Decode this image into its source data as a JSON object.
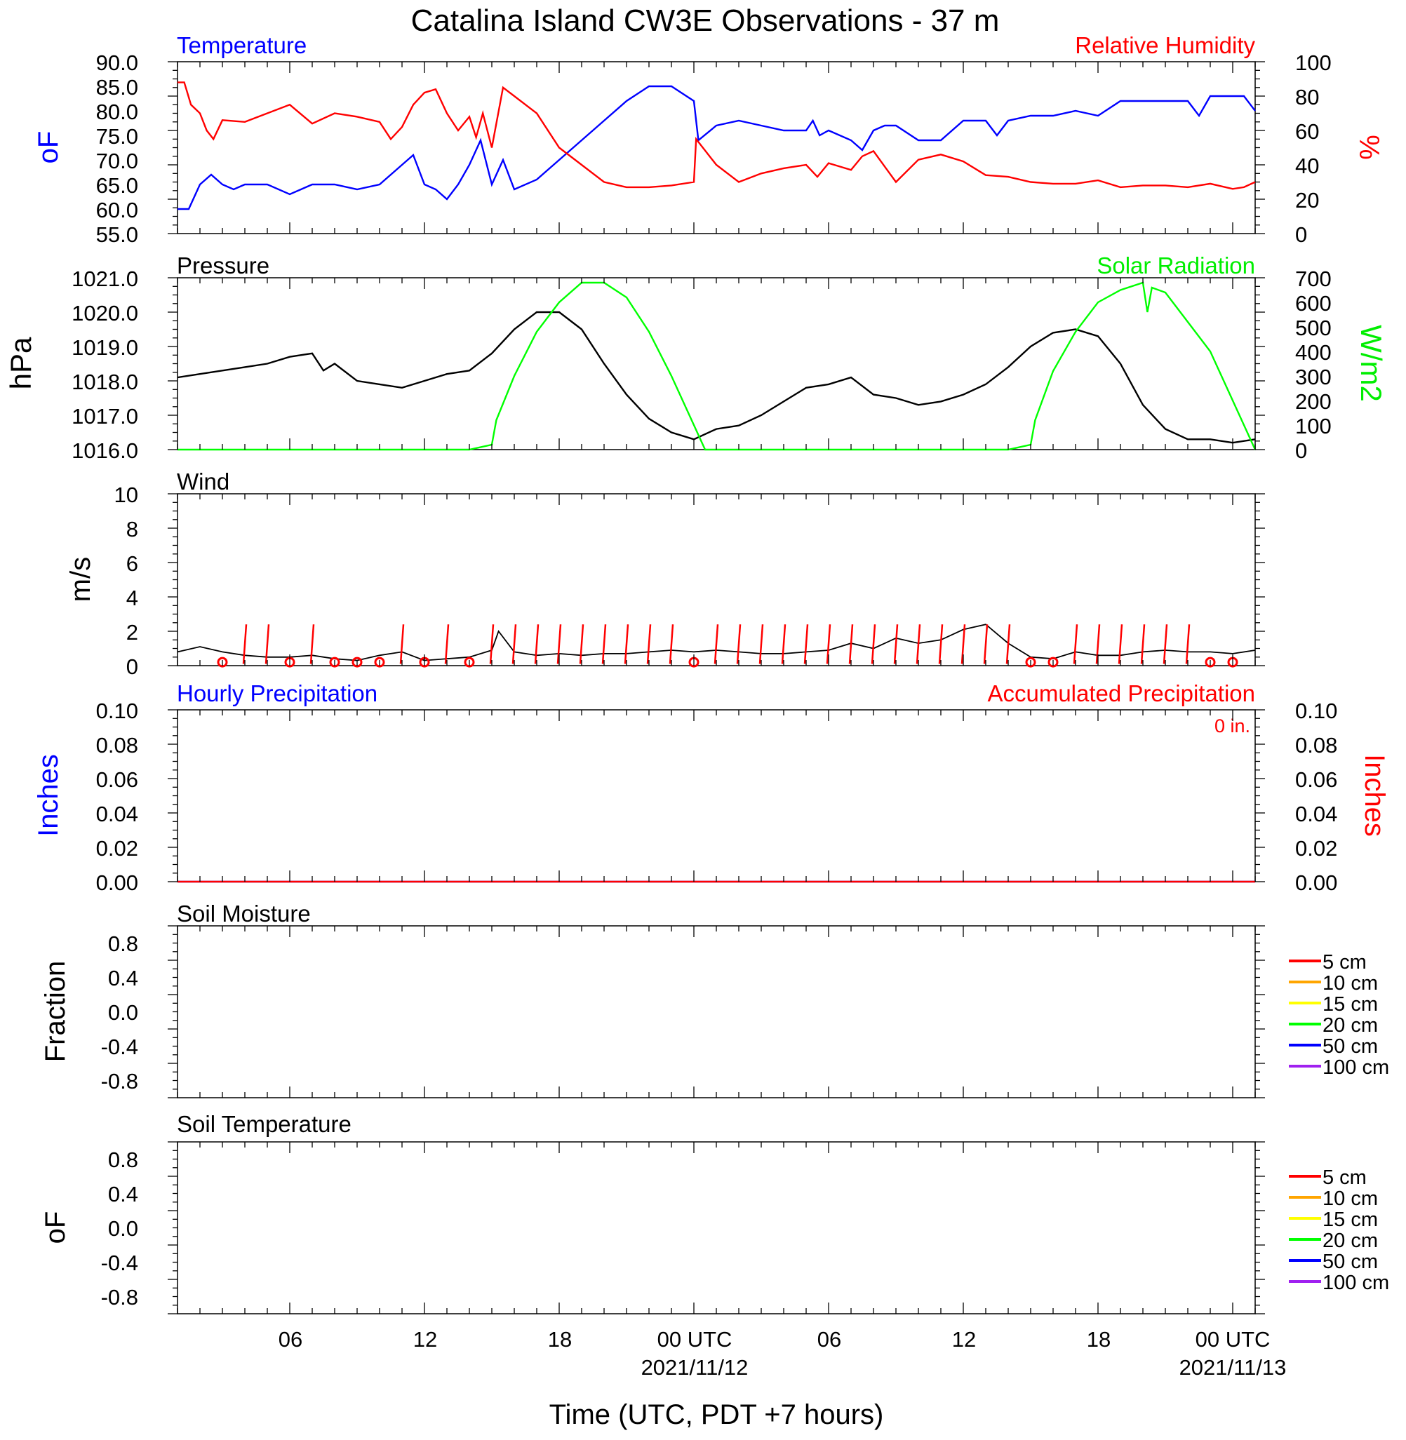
{
  "title": "Catalina Island CW3E Observations - 37 m",
  "x_axis": {
    "label": "Time (UTC, PDT +7 hours)",
    "start_hour": 1,
    "end_hour": 49,
    "ticks": [
      {
        "hour": 6,
        "label": "06",
        "date": ""
      },
      {
        "hour": 12,
        "label": "12",
        "date": ""
      },
      {
        "hour": 18,
        "label": "18",
        "date": ""
      },
      {
        "hour": 24,
        "label": "00 UTC",
        "date": "2021/11/12"
      },
      {
        "hour": 30,
        "label": "06",
        "date": ""
      },
      {
        "hour": 36,
        "label": "12",
        "date": ""
      },
      {
        "hour": 42,
        "label": "18",
        "date": ""
      },
      {
        "hour": 48,
        "label": "00 UTC",
        "date": "2021/11/13"
      }
    ]
  },
  "colors": {
    "temperature": "#0000ff",
    "humidity": "#ff0000",
    "pressure": "#000000",
    "solar": "#00ff00",
    "wind": "#000000",
    "wind_barb": "#ff0000",
    "hourly_precip": "#0000ff",
    "accum_precip": "#ff0000"
  },
  "panels": {
    "temp_rh": {
      "left_title": "Temperature",
      "right_title": "Relative Humidity",
      "left_unit": "oF",
      "right_unit": "%",
      "left_ticks": [
        "90.0",
        "85.0",
        "80.0",
        "75.0",
        "70.0",
        "65.0",
        "60.0",
        "55.0"
      ],
      "right_ticks": [
        "100",
        "80",
        "60",
        "40",
        "20",
        "0"
      ]
    },
    "pressure_solar": {
      "left_title": "Pressure",
      "right_title": "Solar Radiation",
      "left_unit": "hPa",
      "right_unit": "W/m2",
      "left_ticks": [
        "1021.0",
        "1020.0",
        "1019.0",
        "1018.0",
        "1017.0",
        "1016.0"
      ],
      "right_ticks": [
        "700",
        "600",
        "500",
        "400",
        "300",
        "200",
        "100",
        "0"
      ]
    },
    "wind": {
      "left_title": "Wind",
      "left_unit": "m/s",
      "left_ticks": [
        "10",
        "8",
        "6",
        "4",
        "2",
        "0"
      ]
    },
    "precip": {
      "left_title": "Hourly Precipitation",
      "right_title": "Accumulated Precipitation",
      "total_label": "0 in.",
      "left_unit": "Inches",
      "right_unit": "Inches",
      "left_ticks": [
        "0.10",
        "0.08",
        "0.06",
        "0.04",
        "0.02",
        "0.00"
      ],
      "right_ticks": [
        "0.10",
        "0.08",
        "0.06",
        "0.04",
        "0.02",
        "0.00"
      ]
    },
    "soil_moisture": {
      "left_title": "Soil Moisture",
      "left_unit": "Fraction",
      "left_ticks": [
        "0.8",
        "0.4",
        "0.0",
        "-0.4",
        "-0.8"
      ]
    },
    "soil_temp": {
      "left_title": "Soil Temperature",
      "left_unit": "oF",
      "left_ticks": [
        "0.8",
        "0.4",
        "0.0",
        "-0.4",
        "-0.8"
      ]
    }
  },
  "soil_legend": [
    {
      "label": "5 cm",
      "color": "#ff0000"
    },
    {
      "label": "10 cm",
      "color": "#ffa500"
    },
    {
      "label": "15 cm",
      "color": "#ffff00"
    },
    {
      "label": "20 cm",
      "color": "#00ff00"
    },
    {
      "label": "50 cm",
      "color": "#0000ff"
    },
    {
      "label": "100 cm",
      "color": "#a020f0"
    }
  ],
  "chart_data": [
    {
      "type": "line",
      "panel": "temp_rh",
      "x_unit": "hours UTC from 2021/11/11 00",
      "series": [
        {
          "name": "Temperature",
          "axis": "left",
          "ylim": [
            55,
            90
          ],
          "color": "#0000ff",
          "x": [
            1,
            1.5,
            2,
            2.5,
            3,
            3.5,
            4,
            5,
            6,
            7,
            7.5,
            8,
            9,
            10,
            10.5,
            11,
            11.5,
            12,
            12.5,
            13,
            13.5,
            14,
            14.5,
            15,
            15.5,
            16,
            17,
            18,
            19,
            20,
            21,
            22,
            23,
            24,
            24.2,
            25,
            26,
            27,
            28,
            29,
            29.3,
            29.6,
            30,
            31,
            31.5,
            32,
            32.5,
            33,
            34,
            35,
            36,
            37,
            37.5,
            38,
            39,
            40,
            41,
            42,
            43,
            44,
            45,
            46,
            46.5,
            47,
            48,
            48.5,
            49
          ],
          "y": [
            60,
            60,
            65,
            67,
            65,
            64,
            65,
            65,
            63,
            65,
            65,
            65,
            64,
            65,
            67,
            69,
            71,
            65,
            64,
            62,
            65,
            69,
            74,
            65,
            70,
            64,
            66,
            70,
            74,
            78,
            82,
            85,
            85,
            82,
            74,
            77,
            78,
            77,
            76,
            76,
            78,
            75,
            76,
            74,
            72,
            76,
            77,
            77,
            74,
            74,
            78,
            78,
            75,
            78,
            79,
            79,
            80,
            79,
            82,
            82,
            82,
            82,
            79,
            83,
            83,
            83,
            80
          ]
        },
        {
          "name": "Relative Humidity",
          "axis": "right",
          "ylim": [
            0,
            100
          ],
          "color": "#ff0000",
          "x": [
            1,
            1.3,
            1.6,
            2,
            2.3,
            2.6,
            3,
            4,
            5,
            6,
            7,
            8,
            9,
            10,
            10.5,
            11,
            11.5,
            12,
            12.5,
            13,
            13.5,
            14,
            14.3,
            14.6,
            15,
            15.5,
            16,
            17,
            18,
            19,
            20,
            21,
            22,
            23,
            24,
            24.1,
            25,
            26,
            27,
            28,
            29,
            29.5,
            30,
            31,
            31.5,
            32,
            33,
            34,
            35,
            36,
            37,
            38,
            39,
            40,
            41,
            42,
            43,
            44,
            45,
            46,
            47,
            48,
            48.5,
            49
          ],
          "y": [
            88,
            88,
            75,
            70,
            60,
            55,
            66,
            65,
            70,
            75,
            64,
            70,
            68,
            65,
            55,
            62,
            75,
            82,
            84,
            70,
            60,
            68,
            56,
            70,
            50,
            85,
            80,
            70,
            50,
            40,
            30,
            27,
            27,
            28,
            30,
            55,
            40,
            30,
            35,
            38,
            40,
            33,
            41,
            37,
            45,
            48,
            30,
            43,
            46,
            42,
            34,
            33,
            30,
            29,
            29,
            31,
            27,
            28,
            28,
            27,
            29,
            26,
            27,
            30
          ]
        }
      ]
    },
    {
      "type": "line",
      "panel": "pressure_solar",
      "x_unit": "hours UTC from 2021/11/11 00",
      "series": [
        {
          "name": "Pressure",
          "axis": "left",
          "ylim": [
            1016,
            1021
          ],
          "color": "#000000",
          "x": [
            1,
            2,
            3,
            4,
            5,
            6,
            7,
            7.5,
            8,
            9,
            10,
            11,
            12,
            13,
            14,
            15,
            16,
            17,
            18,
            19,
            20,
            21,
            22,
            23,
            24,
            25,
            26,
            27,
            28,
            29,
            30,
            31,
            32,
            33,
            34,
            35,
            36,
            37,
            38,
            39,
            40,
            41,
            42,
            43,
            44,
            45,
            46,
            47,
            48,
            49
          ],
          "y": [
            1018.1,
            1018.2,
            1018.3,
            1018.4,
            1018.5,
            1018.7,
            1018.8,
            1018.3,
            1018.5,
            1018.0,
            1017.9,
            1017.8,
            1018.0,
            1018.2,
            1018.3,
            1018.8,
            1019.5,
            1020.0,
            1020.0,
            1019.5,
            1018.5,
            1017.6,
            1016.9,
            1016.5,
            1016.3,
            1016.6,
            1016.7,
            1017.0,
            1017.4,
            1017.8,
            1017.9,
            1018.1,
            1017.6,
            1017.5,
            1017.3,
            1017.4,
            1017.6,
            1017.9,
            1018.4,
            1019.0,
            1019.4,
            1019.5,
            1019.3,
            1018.5,
            1017.3,
            1016.6,
            1016.3,
            1016.3,
            1016.2,
            1016.3
          ]
        },
        {
          "name": "Solar Radiation",
          "axis": "right",
          "ylim": [
            0,
            700
          ],
          "color": "#00ff00",
          "x": [
            1,
            14,
            15,
            15.2,
            16,
            17,
            18,
            19,
            20,
            21,
            22,
            23,
            24,
            24.5,
            25,
            38,
            39,
            39.2,
            40,
            41,
            42,
            43,
            44,
            44.2,
            44.4,
            45,
            46,
            47,
            48,
            49
          ],
          "y": [
            0,
            0,
            20,
            120,
            300,
            480,
            600,
            680,
            680,
            620,
            480,
            300,
            100,
            0,
            0,
            0,
            20,
            120,
            320,
            480,
            600,
            650,
            680,
            560,
            660,
            640,
            520,
            400,
            200,
            0
          ]
        }
      ]
    },
    {
      "type": "line",
      "panel": "wind",
      "x_unit": "hours UTC from 2021/11/11 00",
      "ylim": [
        0,
        10
      ],
      "series": [
        {
          "name": "Wind",
          "color": "#000000",
          "x": [
            1,
            2,
            3,
            4,
            5,
            6,
            7,
            8,
            9,
            10,
            11,
            12,
            13,
            14,
            15,
            15.3,
            16,
            17,
            18,
            19,
            20,
            21,
            22,
            23,
            24,
            25,
            26,
            27,
            28,
            29,
            30,
            31,
            32,
            33,
            34,
            35,
            36,
            37,
            38,
            39,
            40,
            41,
            42,
            43,
            44,
            45,
            46,
            47,
            48,
            49
          ],
          "y": [
            0.8,
            1.1,
            0.8,
            0.6,
            0.5,
            0.5,
            0.6,
            0.4,
            0.3,
            0.6,
            0.8,
            0.3,
            0.4,
            0.5,
            0.9,
            2.0,
            0.8,
            0.6,
            0.7,
            0.6,
            0.7,
            0.7,
            0.8,
            0.9,
            0.8,
            0.9,
            0.8,
            0.7,
            0.7,
            0.8,
            0.9,
            1.3,
            1.0,
            1.6,
            1.3,
            1.5,
            2.1,
            2.4,
            1.3,
            0.5,
            0.4,
            0.8,
            0.6,
            0.6,
            0.8,
            0.9,
            0.8,
            0.8,
            0.7,
            0.9
          ]
        }
      ],
      "barbs_hours": [
        3,
        4,
        5,
        6,
        7,
        8,
        9,
        10,
        11,
        12,
        13,
        14,
        15,
        16,
        17,
        18,
        19,
        20,
        21,
        22,
        23,
        24,
        25,
        26,
        27,
        28,
        29,
        30,
        31,
        32,
        33,
        34,
        35,
        36,
        37,
        38,
        39,
        40,
        41,
        42,
        43,
        44,
        45,
        46,
        47,
        48
      ],
      "calm_hours": [
        3,
        6,
        8,
        9,
        10,
        12,
        14,
        24,
        39,
        40,
        47,
        48
      ]
    },
    {
      "type": "line",
      "panel": "precip",
      "x_unit": "hours UTC from 2021/11/11 00",
      "ylim": [
        0,
        0.1
      ],
      "series": [
        {
          "name": "Hourly Precipitation",
          "color": "#0000ff",
          "x": [
            1,
            49
          ],
          "y": [
            0,
            0
          ]
        },
        {
          "name": "Accumulated Precipitation",
          "color": "#ff0000",
          "x": [
            1,
            49
          ],
          "y": [
            0,
            0
          ]
        }
      ]
    },
    {
      "type": "line",
      "panel": "soil_moisture",
      "ylim": [
        -1,
        1
      ],
      "series": []
    },
    {
      "type": "line",
      "panel": "soil_temp",
      "ylim": [
        -1,
        1
      ],
      "series": []
    }
  ]
}
